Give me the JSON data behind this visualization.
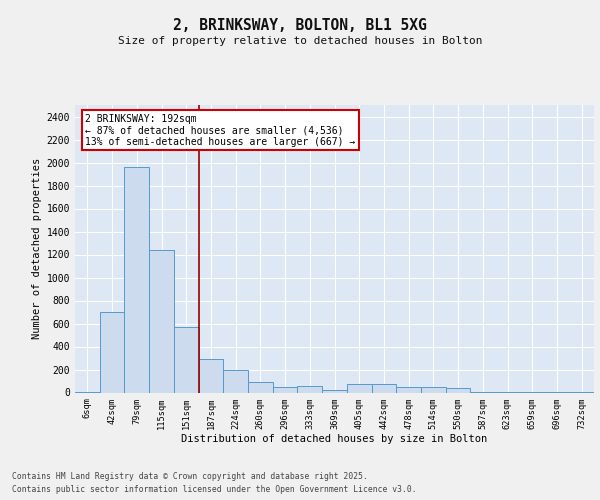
{
  "title_line1": "2, BRINKSWAY, BOLTON, BL1 5XG",
  "title_line2": "Size of property relative to detached houses in Bolton",
  "xlabel": "Distribution of detached houses by size in Bolton",
  "ylabel": "Number of detached properties",
  "bar_color": "#ccdcee",
  "bar_edge_color": "#5599cc",
  "background_color": "#dde8f4",
  "grid_color": "#ffffff",
  "vline_color": "#990000",
  "annotation_box_edge": "#cc0000",
  "annotation_title": "2 BRINKSWAY: 192sqm",
  "annotation_line1": "← 87% of detached houses are smaller (4,536)",
  "annotation_line2": "13% of semi-detached houses are larger (667) →",
  "categories": [
    "6sqm",
    "42sqm",
    "79sqm",
    "115sqm",
    "151sqm",
    "187sqm",
    "224sqm",
    "260sqm",
    "296sqm",
    "333sqm",
    "369sqm",
    "405sqm",
    "442sqm",
    "478sqm",
    "514sqm",
    "550sqm",
    "587sqm",
    "623sqm",
    "659sqm",
    "696sqm",
    "732sqm"
  ],
  "values": [
    8,
    700,
    1960,
    1235,
    570,
    290,
    195,
    90,
    50,
    55,
    25,
    75,
    70,
    50,
    50,
    35,
    5,
    5,
    3,
    3,
    3
  ],
  "ylim": [
    0,
    2500
  ],
  "yticks": [
    0,
    200,
    400,
    600,
    800,
    1000,
    1200,
    1400,
    1600,
    1800,
    2000,
    2200,
    2400
  ],
  "vline_bar_idx": 5,
  "footnote_line1": "Contains HM Land Registry data © Crown copyright and database right 2025.",
  "footnote_line2": "Contains public sector information licensed under the Open Government Licence v3.0.",
  "fig_bg": "#f0f0f0"
}
